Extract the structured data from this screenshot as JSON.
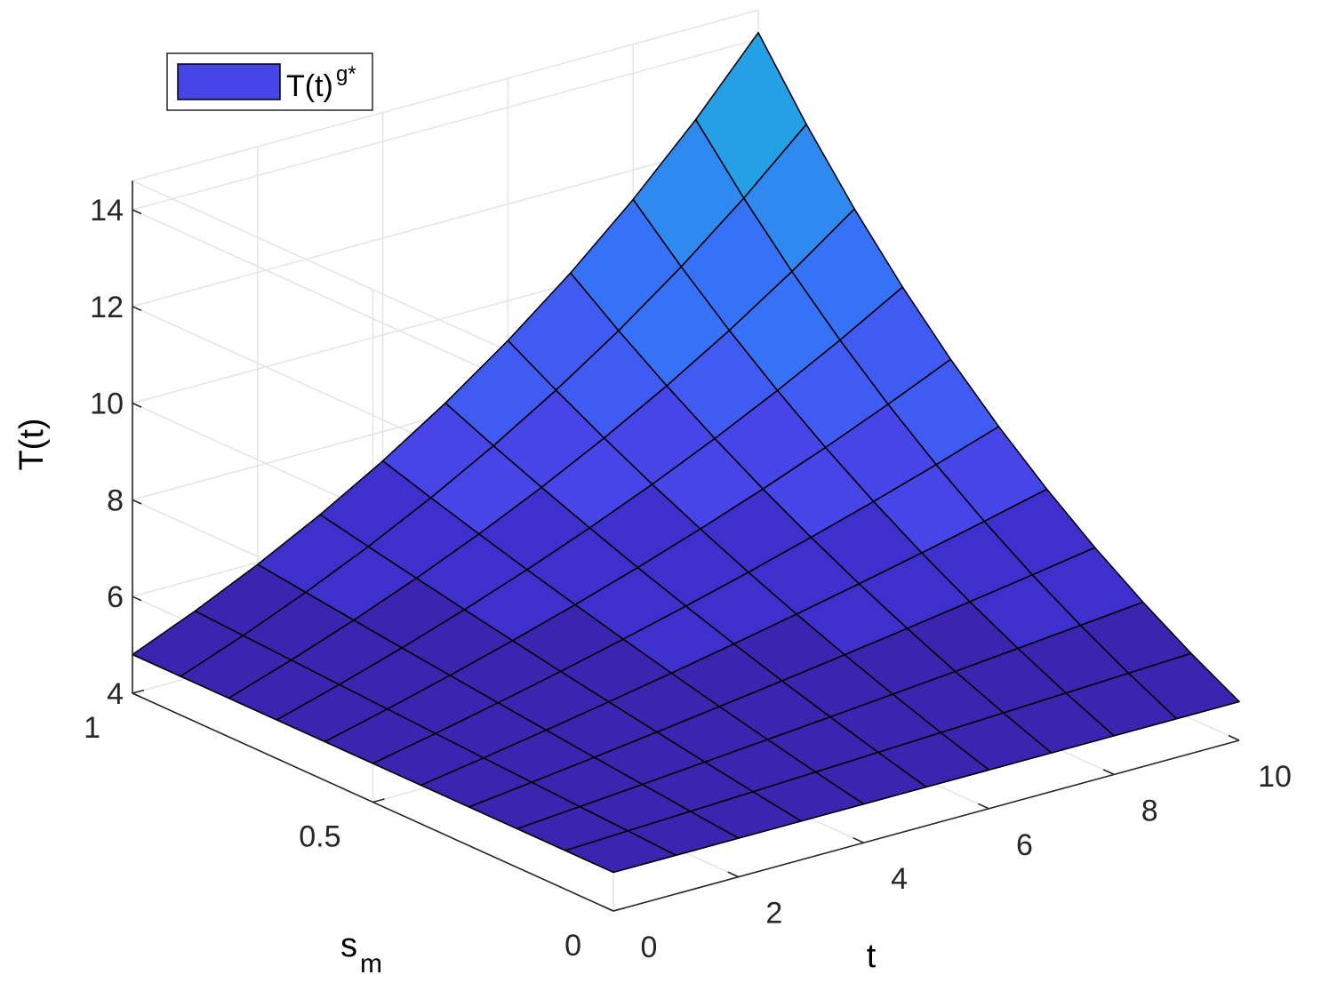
{
  "chart_data": {
    "type": "surface",
    "title": "",
    "xlabel": "t",
    "ylabel": "s_m",
    "ylabel_main": "s",
    "ylabel_sub": "m",
    "zlabel": "T(t)",
    "x": [
      0,
      1,
      2,
      3,
      4,
      5,
      6,
      7,
      8,
      9,
      10
    ],
    "y": [
      0,
      0.1,
      0.2,
      0.3,
      0.4,
      0.5,
      0.6,
      0.7,
      0.8,
      0.9,
      1
    ],
    "z_model": "T(t, s) = 4.8 * exp(0.108 * t * s)",
    "z_corners": {
      "t0": 4.8,
      "t10_s0": 4.8,
      "t10_s1": 14.1
    },
    "xticks": [
      "0",
      "2",
      "4",
      "6",
      "8",
      "10"
    ],
    "xtick_values": [
      0,
      2,
      4,
      6,
      8,
      10
    ],
    "yticks": [
      "0",
      "0.5",
      "1"
    ],
    "ytick_values": [
      0,
      0.5,
      1
    ],
    "zticks": [
      "4",
      "6",
      "8",
      "10",
      "12",
      "14"
    ],
    "ztick_values": [
      4,
      6,
      8,
      10,
      12,
      14
    ],
    "xlim": [
      0,
      10
    ],
    "ylim": [
      0,
      1
    ],
    "zlim": [
      4,
      14.6
    ],
    "grid": true,
    "legend": {
      "position": "top-left",
      "label_main": "T(t)",
      "label_sup": "g*",
      "swatch_color": "#4545E8"
    },
    "colormap": [
      "#3A24B0",
      "#3E30CC",
      "#4545E8",
      "#3F5BF2",
      "#3672F7",
      "#2E8AF0",
      "#23A0E6",
      "#1BAEDD"
    ],
    "edge_color": "#000000"
  }
}
